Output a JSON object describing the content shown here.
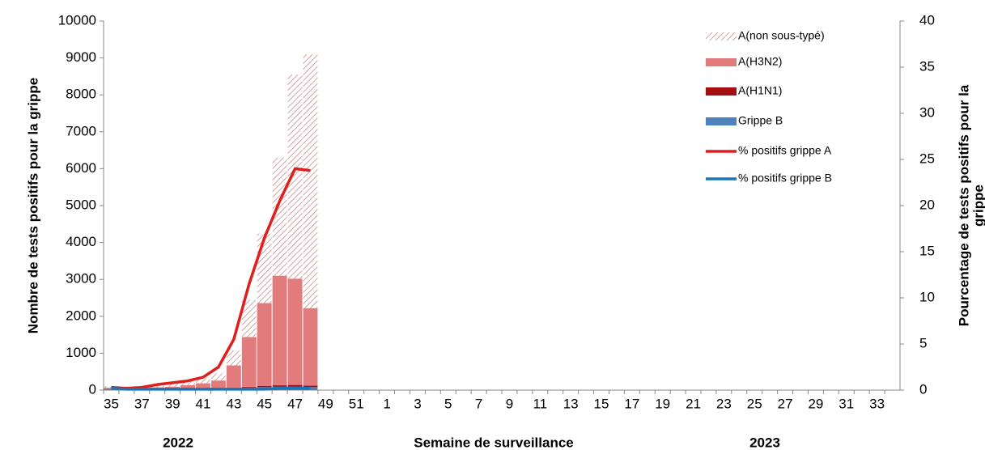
{
  "chart_data": {
    "type": "bar",
    "xlabel": "Semaine de surveillance",
    "ylabel": "Nombre de tests positifs pour la grippe",
    "y2label": [
      "Pourcentage de tests positifs pour la",
      "grippe"
    ],
    "annotations": [
      "2022",
      "2023"
    ],
    "categories": [
      "35",
      null,
      "37",
      null,
      "39",
      null,
      "41",
      null,
      "43",
      null,
      "45",
      null,
      "47",
      null,
      "49",
      null,
      "51",
      null,
      "1",
      null,
      "3",
      null,
      "5",
      null,
      "7",
      null,
      "9",
      null,
      "11",
      null,
      "13",
      null,
      "15",
      null,
      "17",
      null,
      "19",
      null,
      "21",
      null,
      "23",
      null,
      "25",
      null,
      "27",
      null,
      "29",
      null,
      "31",
      null,
      "33",
      null
    ],
    "series": [
      {
        "name": "A(non sous-typé)",
        "type": "bar",
        "color": "#c98b8b",
        "hatch": true,
        "values": [
          40,
          20,
          30,
          50,
          80,
          120,
          150,
          190,
          400,
          1000,
          1880,
          3200,
          5530,
          6880,
          null,
          null,
          null,
          null,
          null,
          null,
          null,
          null,
          null,
          null,
          null,
          null,
          null,
          null,
          null,
          null,
          null,
          null,
          null,
          null,
          null,
          null,
          null,
          null,
          null,
          null,
          null,
          null,
          null,
          null,
          null,
          null,
          null,
          null,
          null,
          null,
          null,
          null
        ]
      },
      {
        "name": "A(H3N2)",
        "type": "bar",
        "color": "#e27b7b",
        "values": [
          30,
          20,
          30,
          40,
          50,
          80,
          130,
          200,
          600,
          1350,
          2250,
          2970,
          2880,
          2100,
          null,
          null,
          null,
          null,
          null,
          null,
          null,
          null,
          null,
          null,
          null,
          null,
          null,
          null,
          null,
          null,
          null,
          null,
          null,
          null,
          null,
          null,
          null,
          null,
          null,
          null,
          null,
          null,
          null,
          null,
          null,
          null,
          null,
          null,
          null,
          null,
          null,
          null
        ]
      },
      {
        "name": "A(H1N1)",
        "type": "bar",
        "color": "#a50f0f",
        "values": [
          5,
          5,
          5,
          5,
          5,
          5,
          5,
          10,
          10,
          20,
          30,
          40,
          50,
          40,
          null,
          null,
          null,
          null,
          null,
          null,
          null,
          null,
          null,
          null,
          null,
          null,
          null,
          null,
          null,
          null,
          null,
          null,
          null,
          null,
          null,
          null,
          null,
          null,
          null,
          null,
          null,
          null,
          null,
          null,
          null,
          null,
          null,
          null,
          null,
          null,
          null,
          null
        ]
      },
      {
        "name": "Grippe B",
        "type": "bar",
        "color": "#4f81bd",
        "values": [
          30,
          20,
          20,
          30,
          40,
          50,
          50,
          50,
          60,
          70,
          80,
          90,
          90,
          80,
          null,
          null,
          null,
          null,
          null,
          null,
          null,
          null,
          null,
          null,
          null,
          null,
          null,
          null,
          null,
          null,
          null,
          null,
          null,
          null,
          null,
          null,
          null,
          null,
          null,
          null,
          null,
          null,
          null,
          null,
          null,
          null,
          null,
          null,
          null,
          null,
          null,
          null
        ]
      },
      {
        "name": "% positifs grippe A",
        "type": "line",
        "axis": "y2",
        "color": "#e01e1e",
        "values": [
          0.3,
          0.2,
          0.3,
          0.6,
          0.8,
          1.0,
          1.4,
          2.5,
          5.5,
          11.5,
          16.5,
          20.5,
          24,
          23.8,
          null,
          null,
          null,
          null,
          null,
          null,
          null,
          null,
          null,
          null,
          null,
          null,
          null,
          null,
          null,
          null,
          null,
          null,
          null,
          null,
          null,
          null,
          null,
          null,
          null,
          null,
          null,
          null,
          null,
          null,
          null,
          null,
          null,
          null,
          null,
          null,
          null,
          null
        ]
      },
      {
        "name": "% positifs grippe B",
        "type": "line",
        "axis": "y2",
        "color": "#1b75bb",
        "values": [
          0.2,
          0.1,
          0.1,
          0.1,
          0.1,
          0.1,
          0.1,
          0.1,
          0.1,
          0.1,
          0.1,
          0.2,
          0.2,
          0.2,
          null,
          null,
          null,
          null,
          null,
          null,
          null,
          null,
          null,
          null,
          null,
          null,
          null,
          null,
          null,
          null,
          null,
          null,
          null,
          null,
          null,
          null,
          null,
          null,
          null,
          null,
          null,
          null,
          null,
          null,
          null,
          null,
          null,
          null,
          null,
          null,
          null,
          null
        ]
      }
    ],
    "ylim": [
      0,
      10000
    ],
    "yticks": [
      0,
      1000,
      2000,
      3000,
      4000,
      5000,
      6000,
      7000,
      8000,
      9000,
      10000
    ],
    "y2lim": [
      0,
      40
    ],
    "y2ticks": [
      0,
      5,
      10,
      15,
      20,
      25,
      30,
      35,
      40
    ],
    "grid": false,
    "legend": "top-right"
  }
}
